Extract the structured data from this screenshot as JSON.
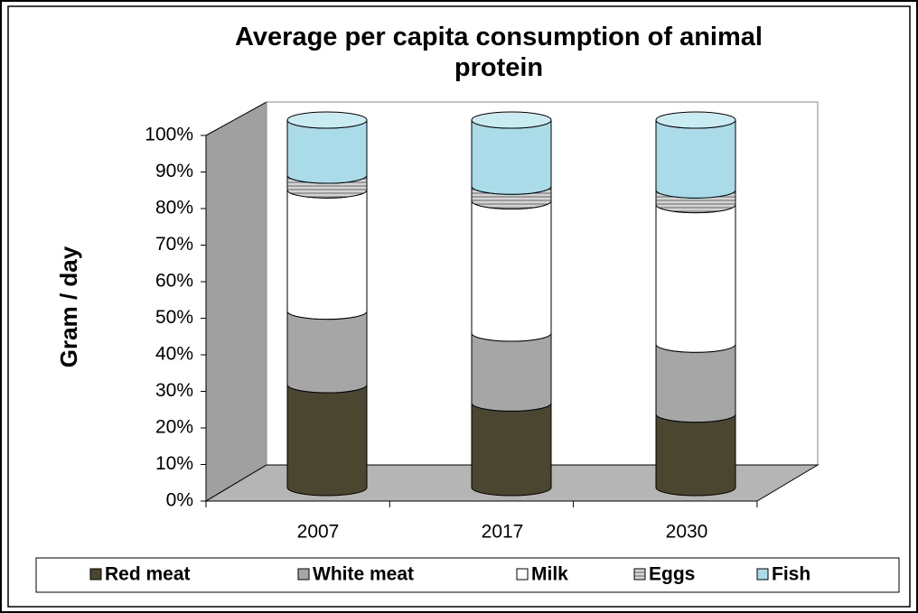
{
  "chart_data": {
    "type": "stacked_bar_3d",
    "title": "Average per capita consumption of animal protein",
    "y_label": "Gram / day",
    "categories": [
      "2007",
      "2017",
      "2030"
    ],
    "series": [
      {
        "name": "Red meat",
        "color": "#4a4630",
        "values": [
          28,
          23,
          20
        ]
      },
      {
        "name": "White meat",
        "color": "#a6a6a6",
        "values": [
          20,
          19,
          19
        ]
      },
      {
        "name": "Milk",
        "color": "#ffffff",
        "values": [
          33,
          36,
          38
        ]
      },
      {
        "name": "Eggs",
        "color": "#d4d4d4",
        "values": [
          4,
          4,
          4
        ]
      },
      {
        "name": "Fish",
        "color": "#a9dce8",
        "values": [
          15,
          18,
          19
        ]
      }
    ],
    "ylim": [
      0,
      100
    ],
    "yticks": [
      {
        "value": 0,
        "label": "0%"
      },
      {
        "value": 10,
        "label": "10%"
      },
      {
        "value": 20,
        "label": "20%"
      },
      {
        "value": 30,
        "label": "30%"
      },
      {
        "value": 40,
        "label": "40%"
      },
      {
        "value": 50,
        "label": "50%"
      },
      {
        "value": 60,
        "label": "60%"
      },
      {
        "value": 70,
        "label": "70%"
      },
      {
        "value": 80,
        "label": "80%"
      },
      {
        "value": 90,
        "label": "90%"
      },
      {
        "value": 100,
        "label": "100%"
      }
    ],
    "legend": "bottom"
  }
}
